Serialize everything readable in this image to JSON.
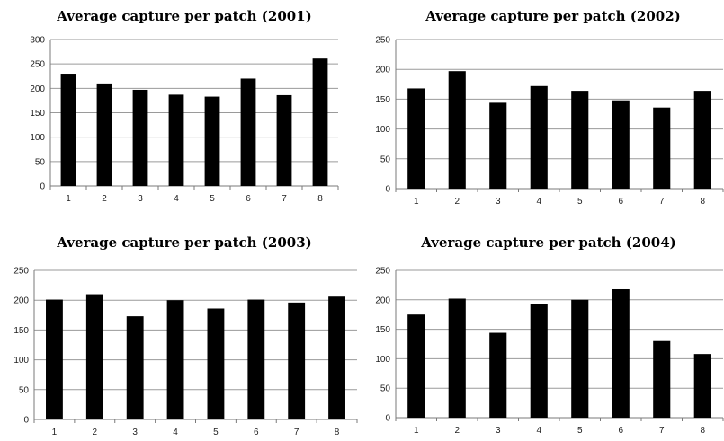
{
  "chart_data": [
    {
      "type": "bar",
      "title": "Average capture per patch (2001)",
      "categories": [
        "1",
        "2",
        "3",
        "4",
        "5",
        "6",
        "7",
        "8"
      ],
      "values": [
        230,
        210,
        197,
        187,
        183,
        220,
        186,
        261
      ],
      "ylim": [
        0,
        300
      ],
      "yticks": [
        0,
        50,
        100,
        150,
        200,
        250,
        300
      ],
      "grid": true,
      "bar_color": "#000000",
      "grid_color": "#9a9a9a"
    },
    {
      "type": "bar",
      "title": "Average capture per patch (2002)",
      "categories": [
        "1",
        "2",
        "3",
        "4",
        "5",
        "6",
        "7",
        "8"
      ],
      "values": [
        168,
        197,
        144,
        172,
        164,
        148,
        136,
        164
      ],
      "ylim": [
        0,
        250
      ],
      "yticks": [
        0,
        50,
        100,
        150,
        200,
        250
      ],
      "grid": true,
      "bar_color": "#000000",
      "grid_color": "#9a9a9a"
    },
    {
      "type": "bar",
      "title": "Average capture per patch (2003)",
      "categories": [
        "1",
        "2",
        "3",
        "4",
        "5",
        "6",
        "7",
        "8"
      ],
      "values": [
        201,
        210,
        173,
        200,
        186,
        201,
        196,
        206
      ],
      "ylim": [
        0,
        250
      ],
      "yticks": [
        0,
        50,
        100,
        150,
        200,
        250
      ],
      "grid": true,
      "bar_color": "#000000",
      "grid_color": "#9a9a9a"
    },
    {
      "type": "bar",
      "title": "Average capture per patch (2004)",
      "categories": [
        "1",
        "2",
        "3",
        "4",
        "5",
        "6",
        "7",
        "8"
      ],
      "values": [
        175,
        202,
        144,
        193,
        200,
        218,
        130,
        108
      ],
      "ylim": [
        0,
        250
      ],
      "yticks": [
        0,
        50,
        100,
        150,
        200,
        250
      ],
      "grid": true,
      "bar_color": "#000000",
      "grid_color": "#9a9a9a"
    }
  ]
}
